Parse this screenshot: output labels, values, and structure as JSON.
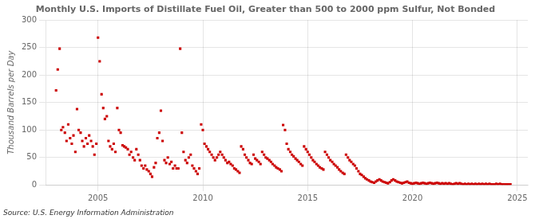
{
  "chart_data": {
    "type": "scatter",
    "title": "Monthly U.S. Imports of Distillate Fuel Oil, Greater than 500 to 2000 ppm Sulfur, Not Bonded",
    "ylabel": "Thousand Barrels per Day",
    "annotations": [
      "Source: U.S. Energy Information Administration"
    ],
    "color": "#cc0000",
    "marker": "square",
    "grid": true,
    "xlim": [
      2002.5,
      2025.5
    ],
    "ylim": [
      0,
      300
    ],
    "xticks": [
      2005,
      2010,
      2015,
      2020,
      2025
    ],
    "yticks": [
      0,
      50,
      100,
      150,
      200,
      250,
      300
    ],
    "x": [
      2003.0,
      2003.08,
      2003.17,
      2003.25,
      2003.33,
      2003.42,
      2003.5,
      2003.58,
      2003.67,
      2003.75,
      2003.83,
      2003.92,
      2004.0,
      2004.08,
      2004.17,
      2004.25,
      2004.33,
      2004.42,
      2004.5,
      2004.58,
      2004.67,
      2004.75,
      2004.83,
      2004.92,
      2005.0,
      2005.08,
      2005.17,
      2005.25,
      2005.33,
      2005.42,
      2005.5,
      2005.58,
      2005.67,
      2005.75,
      2005.83,
      2005.92,
      2006.0,
      2006.08,
      2006.17,
      2006.25,
      2006.33,
      2006.42,
      2006.5,
      2006.58,
      2006.67,
      2006.75,
      2006.83,
      2006.92,
      2007.0,
      2007.08,
      2007.17,
      2007.25,
      2007.33,
      2007.42,
      2007.5,
      2007.58,
      2007.67,
      2007.75,
      2007.83,
      2007.92,
      2008.0,
      2008.08,
      2008.17,
      2008.25,
      2008.33,
      2008.42,
      2008.5,
      2008.58,
      2008.67,
      2008.75,
      2008.83,
      2008.92,
      2009.0,
      2009.08,
      2009.17,
      2009.25,
      2009.33,
      2009.42,
      2009.5,
      2009.58,
      2009.67,
      2009.75,
      2009.83,
      2009.92,
      2010.0,
      2010.08,
      2010.17,
      2010.25,
      2010.33,
      2010.42,
      2010.5,
      2010.58,
      2010.67,
      2010.75,
      2010.83,
      2010.92,
      2011.0,
      2011.08,
      2011.17,
      2011.25,
      2011.33,
      2011.42,
      2011.5,
      2011.58,
      2011.67,
      2011.75,
      2011.83,
      2011.92,
      2012.0,
      2012.08,
      2012.17,
      2012.25,
      2012.33,
      2012.42,
      2012.5,
      2012.58,
      2012.67,
      2012.75,
      2012.83,
      2012.92,
      2013.0,
      2013.08,
      2013.17,
      2013.25,
      2013.33,
      2013.42,
      2013.5,
      2013.58,
      2013.67,
      2013.75,
      2013.83,
      2013.92,
      2014.0,
      2014.08,
      2014.17,
      2014.25,
      2014.33,
      2014.42,
      2014.5,
      2014.58,
      2014.67,
      2014.75,
      2014.83,
      2014.92,
      2015.0,
      2015.08,
      2015.17,
      2015.25,
      2015.33,
      2015.42,
      2015.5,
      2015.58,
      2015.67,
      2015.75,
      2015.83,
      2015.92,
      2016.0,
      2016.08,
      2016.17,
      2016.25,
      2016.33,
      2016.42,
      2016.5,
      2016.58,
      2016.67,
      2016.75,
      2016.83,
      2016.92,
      2017.0,
      2017.08,
      2017.17,
      2017.25,
      2017.33,
      2017.42,
      2017.5,
      2017.58,
      2017.67,
      2017.75,
      2017.83,
      2017.92,
      2018.0,
      2018.08,
      2018.17,
      2018.25,
      2018.33,
      2018.42,
      2018.5,
      2018.58,
      2018.67,
      2018.75,
      2018.83,
      2018.92,
      2019.0,
      2019.08,
      2019.17,
      2019.25,
      2019.33,
      2019.42,
      2019.5,
      2019.58,
      2019.67,
      2019.75,
      2019.83,
      2019.92,
      2020.0,
      2020.08,
      2020.17,
      2020.25,
      2020.33,
      2020.42,
      2020.5,
      2020.58,
      2020.67,
      2020.75,
      2020.83,
      2020.92,
      2021.0,
      2021.08,
      2021.17,
      2021.25,
      2021.33,
      2021.42,
      2021.5,
      2021.58,
      2021.67,
      2021.75,
      2021.83,
      2021.92,
      2022.0,
      2022.08,
      2022.17,
      2022.25,
      2022.33,
      2022.42,
      2022.5,
      2022.58,
      2022.67,
      2022.75,
      2022.83,
      2022.92,
      2023.0,
      2023.08,
      2023.17,
      2023.25,
      2023.33,
      2023.42,
      2023.5,
      2023.58,
      2023.67,
      2023.75,
      2023.83,
      2023.92,
      2024.0,
      2024.08,
      2024.17,
      2024.25,
      2024.33,
      2024.42,
      2024.5,
      2024.58,
      2024.67
    ],
    "values": [
      172,
      210,
      248,
      100,
      105,
      95,
      80,
      110,
      85,
      75,
      90,
      60,
      138,
      100,
      95,
      80,
      70,
      85,
      75,
      90,
      80,
      70,
      55,
      75,
      268,
      225,
      165,
      140,
      120,
      125,
      80,
      70,
      65,
      75,
      60,
      140,
      100,
      95,
      72,
      70,
      68,
      65,
      55,
      60,
      50,
      45,
      65,
      55,
      45,
      35,
      30,
      35,
      28,
      25,
      20,
      15,
      32,
      40,
      85,
      95,
      135,
      80,
      45,
      40,
      50,
      38,
      42,
      30,
      35,
      30,
      30,
      248,
      95,
      60,
      45,
      40,
      50,
      55,
      35,
      30,
      25,
      20,
      30,
      110,
      100,
      75,
      70,
      65,
      60,
      55,
      50,
      45,
      50,
      55,
      60,
      55,
      50,
      45,
      40,
      42,
      38,
      35,
      30,
      28,
      25,
      22,
      70,
      65,
      55,
      50,
      45,
      40,
      38,
      55,
      48,
      45,
      42,
      38,
      60,
      55,
      50,
      48,
      45,
      42,
      38,
      35,
      32,
      30,
      28,
      25,
      109,
      100,
      75,
      65,
      60,
      55,
      52,
      48,
      45,
      42,
      38,
      35,
      70,
      65,
      60,
      55,
      50,
      45,
      42,
      38,
      35,
      32,
      30,
      28,
      60,
      55,
      50,
      45,
      42,
      38,
      35,
      32,
      28,
      25,
      22,
      20,
      55,
      50,
      45,
      42,
      38,
      35,
      30,
      25,
      20,
      18,
      15,
      12,
      10,
      8,
      6,
      5,
      4,
      6,
      8,
      10,
      8,
      6,
      5,
      4,
      3,
      5,
      8,
      10,
      8,
      6,
      5,
      4,
      3,
      4,
      5,
      6,
      4,
      3,
      2,
      3,
      4,
      3,
      2,
      3,
      4,
      3,
      2,
      3,
      4,
      3,
      2,
      3,
      4,
      3,
      2,
      3,
      2,
      3,
      2,
      3,
      2,
      1,
      2,
      3,
      2,
      3,
      2,
      1,
      2,
      1,
      2,
      1,
      2,
      1,
      2,
      1,
      2,
      1,
      2,
      1,
      2,
      1,
      2,
      1,
      1,
      1,
      2,
      1,
      2,
      1,
      1,
      1,
      1,
      1,
      1
    ]
  }
}
